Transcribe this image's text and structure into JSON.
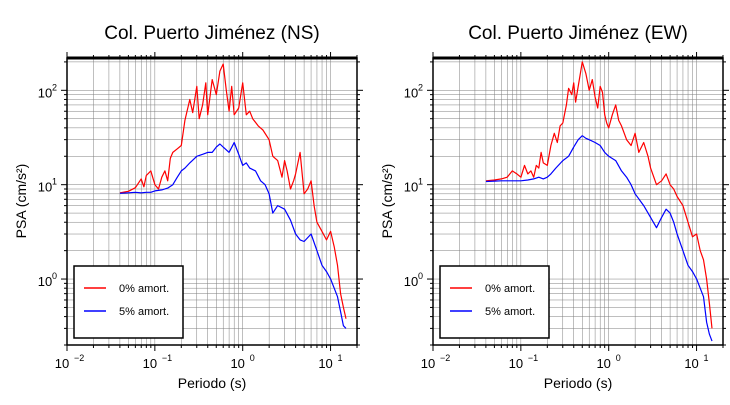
{
  "chart_data": [
    {
      "type": "line",
      "title": "Col. Puerto Jiménez (NS)",
      "xlabel": "Periodo (s)",
      "ylabel": "PSA (cm/s²)",
      "x_scale": "log",
      "y_scale": "log",
      "xlim": [
        0.01,
        20
      ],
      "ylim": [
        0.2,
        220
      ],
      "xticks": [
        {
          "value": 0.01,
          "base": "10",
          "exp": "−2"
        },
        {
          "value": 0.1,
          "base": "10",
          "exp": "−1"
        },
        {
          "value": 1,
          "base": "10",
          "exp": "0"
        },
        {
          "value": 10,
          "base": "10",
          "exp": "1"
        }
      ],
      "yticks": [
        {
          "value": 1,
          "base": "10",
          "exp": "0"
        },
        {
          "value": 10,
          "base": "10",
          "exp": "1"
        },
        {
          "value": 100,
          "base": "10",
          "exp": "2"
        }
      ],
      "grid": true,
      "legend_position": "bottom-left",
      "series": [
        {
          "name": "0% amort.",
          "color": "#ff0000",
          "points": [
            [
              0.04,
              8.2
            ],
            [
              0.05,
              8.5
            ],
            [
              0.06,
              9.3
            ],
            [
              0.07,
              11.5
            ],
            [
              0.075,
              9.5
            ],
            [
              0.08,
              12.5
            ],
            [
              0.09,
              14
            ],
            [
              0.1,
              10
            ],
            [
              0.11,
              9
            ],
            [
              0.12,
              12
            ],
            [
              0.13,
              14
            ],
            [
              0.14,
              11
            ],
            [
              0.15,
              19
            ],
            [
              0.16,
              22
            ],
            [
              0.18,
              24
            ],
            [
              0.2,
              26
            ],
            [
              0.22,
              48
            ],
            [
              0.25,
              80
            ],
            [
              0.27,
              58
            ],
            [
              0.3,
              110
            ],
            [
              0.32,
              50
            ],
            [
              0.35,
              70
            ],
            [
              0.38,
              120
            ],
            [
              0.4,
              55
            ],
            [
              0.45,
              130
            ],
            [
              0.5,
              90
            ],
            [
              0.55,
              160
            ],
            [
              0.6,
              190
            ],
            [
              0.65,
              100
            ],
            [
              0.7,
              60
            ],
            [
              0.75,
              110
            ],
            [
              0.8,
              55
            ],
            [
              0.9,
              65
            ],
            [
              1,
              120
            ],
            [
              1.1,
              55
            ],
            [
              1.2,
              60
            ],
            [
              1.3,
              50
            ],
            [
              1.5,
              42
            ],
            [
              1.7,
              38
            ],
            [
              2,
              30
            ],
            [
              2.2,
              20
            ],
            [
              2.5,
              18
            ],
            [
              2.8,
              12
            ],
            [
              3,
              18
            ],
            [
              3.2,
              14
            ],
            [
              3.5,
              9
            ],
            [
              3.8,
              11
            ],
            [
              4,
              13
            ],
            [
              4.5,
              22
            ],
            [
              5,
              8
            ],
            [
              5.5,
              9
            ],
            [
              6,
              11
            ],
            [
              6.5,
              6
            ],
            [
              7,
              4
            ],
            [
              8,
              3.2
            ],
            [
              9,
              2.6
            ],
            [
              10,
              3.2
            ],
            [
              11,
              2.2
            ],
            [
              12,
              1.4
            ],
            [
              13,
              0.7
            ],
            [
              14,
              0.5
            ],
            [
              15,
              0.38
            ]
          ]
        },
        {
          "name": "5% amort.",
          "color": "#0000ff",
          "points": [
            [
              0.04,
              8.1
            ],
            [
              0.05,
              8.2
            ],
            [
              0.06,
              8.3
            ],
            [
              0.07,
              8.2
            ],
            [
              0.08,
              8.3
            ],
            [
              0.09,
              8.3
            ],
            [
              0.1,
              8.6
            ],
            [
              0.12,
              8.8
            ],
            [
              0.14,
              9.2
            ],
            [
              0.16,
              10
            ],
            [
              0.18,
              12
            ],
            [
              0.2,
              14
            ],
            [
              0.22,
              15
            ],
            [
              0.25,
              17
            ],
            [
              0.3,
              20
            ],
            [
              0.35,
              21
            ],
            [
              0.4,
              22
            ],
            [
              0.45,
              22
            ],
            [
              0.5,
              25
            ],
            [
              0.55,
              27
            ],
            [
              0.6,
              25
            ],
            [
              0.7,
              22
            ],
            [
              0.8,
              28
            ],
            [
              0.9,
              21
            ],
            [
              1,
              16
            ],
            [
              1.1,
              17
            ],
            [
              1.2,
              15
            ],
            [
              1.4,
              14
            ],
            [
              1.6,
              11
            ],
            [
              1.8,
              10
            ],
            [
              2,
              8
            ],
            [
              2.2,
              5
            ],
            [
              2.5,
              6
            ],
            [
              3,
              5.5
            ],
            [
              3.5,
              4.2
            ],
            [
              4,
              3
            ],
            [
              4.5,
              2.6
            ],
            [
              5,
              2.5
            ],
            [
              6,
              3
            ],
            [
              7,
              2
            ],
            [
              8,
              1.4
            ],
            [
              9,
              1.2
            ],
            [
              10,
              1
            ],
            [
              11,
              0.8
            ],
            [
              12,
              0.65
            ],
            [
              13,
              0.45
            ],
            [
              14,
              0.32
            ],
            [
              15,
              0.3
            ]
          ]
        }
      ]
    },
    {
      "type": "line",
      "title": "Col. Puerto Jiménez (EW)",
      "xlabel": "Periodo (s)",
      "ylabel": "PSA (cm/s²)",
      "x_scale": "log",
      "y_scale": "log",
      "xlim": [
        0.01,
        20
      ],
      "ylim": [
        0.2,
        220
      ],
      "xticks": [
        {
          "value": 0.01,
          "base": "10",
          "exp": "−2"
        },
        {
          "value": 0.1,
          "base": "10",
          "exp": "−1"
        },
        {
          "value": 1,
          "base": "10",
          "exp": "0"
        },
        {
          "value": 10,
          "base": "10",
          "exp": "1"
        }
      ],
      "yticks": [
        {
          "value": 1,
          "base": "10",
          "exp": "0"
        },
        {
          "value": 10,
          "base": "10",
          "exp": "1"
        },
        {
          "value": 100,
          "base": "10",
          "exp": "2"
        }
      ],
      "grid": true,
      "legend_position": "bottom-left",
      "series": [
        {
          "name": "0% amort.",
          "color": "#ff0000",
          "points": [
            [
              0.04,
              11
            ],
            [
              0.05,
              11.2
            ],
            [
              0.06,
              11.5
            ],
            [
              0.07,
              12
            ],
            [
              0.08,
              14
            ],
            [
              0.09,
              13
            ],
            [
              0.1,
              12
            ],
            [
              0.11,
              16
            ],
            [
              0.12,
              13
            ],
            [
              0.13,
              14
            ],
            [
              0.14,
              12
            ],
            [
              0.15,
              16
            ],
            [
              0.16,
              15
            ],
            [
              0.17,
              22
            ],
            [
              0.18,
              17
            ],
            [
              0.2,
              16
            ],
            [
              0.22,
              26
            ],
            [
              0.24,
              35
            ],
            [
              0.26,
              28
            ],
            [
              0.28,
              42
            ],
            [
              0.3,
              45
            ],
            [
              0.33,
              70
            ],
            [
              0.35,
              105
            ],
            [
              0.38,
              90
            ],
            [
              0.4,
              120
            ],
            [
              0.42,
              75
            ],
            [
              0.45,
              110
            ],
            [
              0.5,
              200
            ],
            [
              0.55,
              150
            ],
            [
              0.6,
              100
            ],
            [
              0.65,
              130
            ],
            [
              0.7,
              85
            ],
            [
              0.75,
              65
            ],
            [
              0.8,
              110
            ],
            [
              0.85,
              95
            ],
            [
              0.9,
              55
            ],
            [
              0.95,
              45
            ],
            [
              1,
              40
            ],
            [
              1.1,
              55
            ],
            [
              1.2,
              70
            ],
            [
              1.3,
              48
            ],
            [
              1.4,
              42
            ],
            [
              1.6,
              30
            ],
            [
              1.8,
              26
            ],
            [
              2,
              35
            ],
            [
              2.2,
              22
            ],
            [
              2.5,
              28
            ],
            [
              2.8,
              20
            ],
            [
              3,
              15
            ],
            [
              3.5,
              10
            ],
            [
              4,
              11
            ],
            [
              4.5,
              13
            ],
            [
              5,
              10
            ],
            [
              5.5,
              9
            ],
            [
              6,
              7.5
            ],
            [
              7,
              6
            ],
            [
              8,
              4
            ],
            [
              9,
              2.8
            ],
            [
              10,
              3
            ],
            [
              11,
              2
            ],
            [
              12,
              1.6
            ],
            [
              13,
              1
            ],
            [
              14,
              0.55
            ],
            [
              15,
              0.3
            ]
          ]
        },
        {
          "name": "5% amort.",
          "color": "#0000ff",
          "points": [
            [
              0.04,
              10.8
            ],
            [
              0.05,
              10.9
            ],
            [
              0.06,
              11
            ],
            [
              0.08,
              11
            ],
            [
              0.1,
              11
            ],
            [
              0.12,
              11.2
            ],
            [
              0.14,
              11.5
            ],
            [
              0.16,
              12
            ],
            [
              0.18,
              11.5
            ],
            [
              0.2,
              12
            ],
            [
              0.22,
              13
            ],
            [
              0.25,
              15
            ],
            [
              0.3,
              18
            ],
            [
              0.35,
              20
            ],
            [
              0.4,
              25
            ],
            [
              0.45,
              30
            ],
            [
              0.5,
              33
            ],
            [
              0.55,
              31
            ],
            [
              0.6,
              30
            ],
            [
              0.7,
              28
            ],
            [
              0.8,
              26
            ],
            [
              0.9,
              22
            ],
            [
              1,
              20
            ],
            [
              1.2,
              18
            ],
            [
              1.4,
              14
            ],
            [
              1.6,
              12
            ],
            [
              1.8,
              10
            ],
            [
              2,
              8
            ],
            [
              2.5,
              6
            ],
            [
              3,
              4.5
            ],
            [
              3.5,
              3.5
            ],
            [
              4,
              4.5
            ],
            [
              4.5,
              5.5
            ],
            [
              5,
              5
            ],
            [
              5.5,
              4
            ],
            [
              6,
              3
            ],
            [
              7,
              2
            ],
            [
              8,
              1.4
            ],
            [
              9,
              1.2
            ],
            [
              10,
              1
            ],
            [
              11,
              0.8
            ],
            [
              12,
              0.65
            ],
            [
              13,
              0.35
            ],
            [
              14,
              0.26
            ],
            [
              15,
              0.22
            ]
          ]
        }
      ]
    }
  ]
}
